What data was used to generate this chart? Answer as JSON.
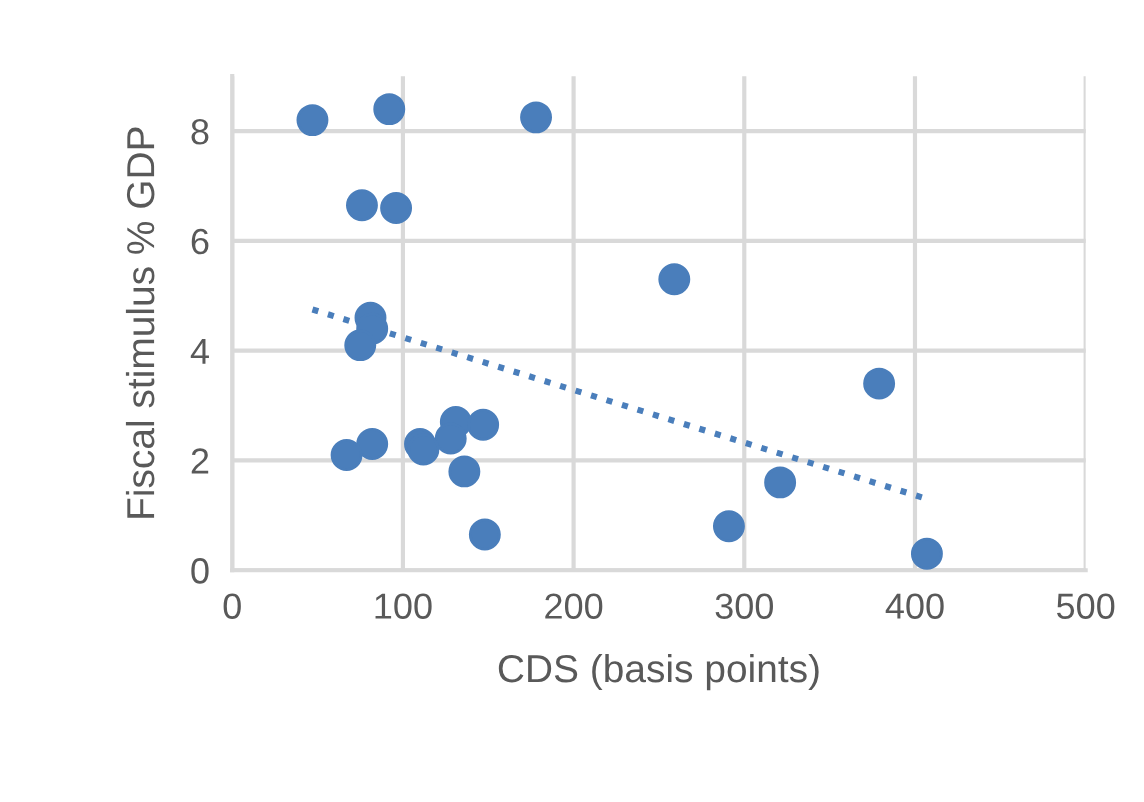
{
  "chart_data": {
    "type": "scatter",
    "xlabel": "CDS (basis points)",
    "ylabel": "Fiscal stimulus % GDP",
    "xlim": [
      0,
      500
    ],
    "xticks": [
      0,
      100,
      200,
      300,
      400,
      500
    ],
    "ylim": [
      0,
      9
    ],
    "yticks": [
      0,
      2,
      4,
      6,
      8
    ],
    "grid": true,
    "marker": "circle",
    "series": [
      {
        "color": "#4a7ebb",
        "x": [
          47,
          92,
          178,
          76,
          96,
          259,
          81,
          82,
          75,
          379,
          131,
          147,
          128,
          110,
          112,
          82,
          67,
          136,
          148,
          291,
          321,
          407
        ],
        "values": [
          8.2,
          8.4,
          8.25,
          6.65,
          6.6,
          5.3,
          4.6,
          4.4,
          4.1,
          3.4,
          2.7,
          2.65,
          2.4,
          2.3,
          2.2,
          2.3,
          2.1,
          1.8,
          0.65,
          0.8,
          1.6,
          0.3
        ]
      },
      {
        "type": "line",
        "color": "#4a7ebb",
        "line_style": "dotted",
        "marker": "none",
        "x": [
          47,
          407
        ],
        "values": [
          4.75,
          1.3
        ]
      }
    ]
  }
}
